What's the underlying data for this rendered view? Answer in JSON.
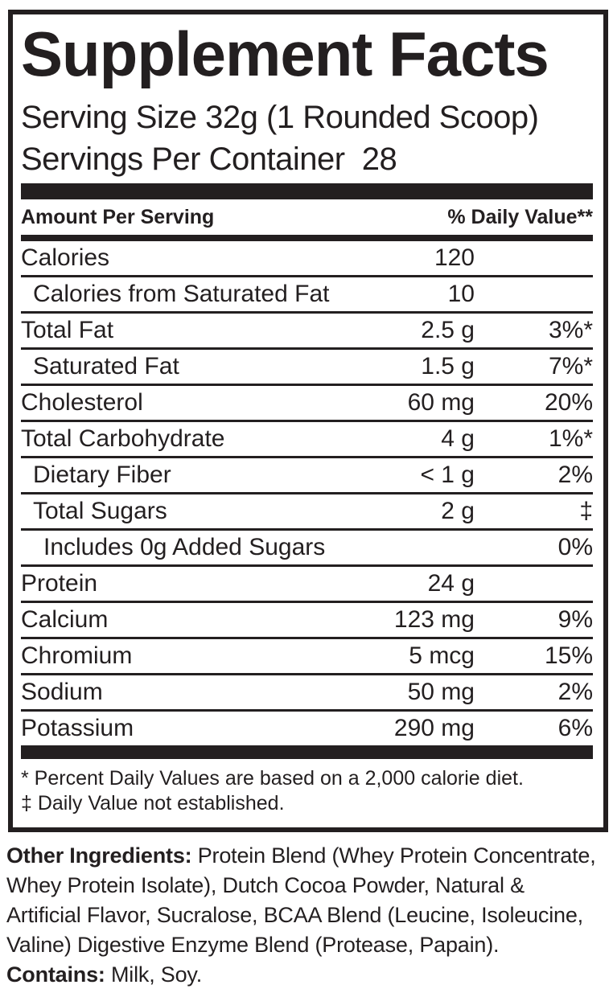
{
  "colors": {
    "ink": "#231f20",
    "background": "#ffffff"
  },
  "label": {
    "title": "Supplement Facts",
    "serving_size": "Serving Size 32g (1 Rounded Scoop)",
    "servings_per_container": "Servings Per Container  28",
    "header": {
      "amount_per_serving": "Amount Per Serving",
      "daily_value": "% Daily Value**"
    },
    "rows": [
      {
        "name": "Calories",
        "amount": "120",
        "dv": "",
        "indent": 0
      },
      {
        "name": "Calories from Saturated Fat",
        "amount": "10",
        "dv": "",
        "indent": 1
      },
      {
        "name": "Total Fat",
        "amount": "2.5 g",
        "dv": "3%*",
        "indent": 0
      },
      {
        "name": "Saturated Fat",
        "amount": "1.5 g",
        "dv": "7%*",
        "indent": 1
      },
      {
        "name": "Cholesterol",
        "amount": "60 mg",
        "dv": "20%",
        "indent": 0
      },
      {
        "name": "Total Carbohydrate",
        "amount": "4 g",
        "dv": "1%*",
        "indent": 0
      },
      {
        "name": "Dietary Fiber",
        "amount": "< 1 g",
        "dv": "2%",
        "indent": 1
      },
      {
        "name": "Total Sugars",
        "amount": "2 g",
        "dv": "‡",
        "indent": 1
      },
      {
        "name": "Includes 0g Added Sugars",
        "amount": "",
        "dv": "0%",
        "indent": 2
      },
      {
        "name": "Protein",
        "amount": "24 g",
        "dv": "",
        "indent": 0
      },
      {
        "name": "Calcium",
        "amount": "123 mg",
        "dv": "9%",
        "indent": 0
      },
      {
        "name": "Chromium",
        "amount": "5 mcg",
        "dv": "15%",
        "indent": 0
      },
      {
        "name": "Sodium",
        "amount": "50 mg",
        "dv": "2%",
        "indent": 0
      },
      {
        "name": "Potassium",
        "amount": "290 mg",
        "dv": "6%",
        "indent": 0
      }
    ],
    "footnotes": [
      "* Percent Daily Values are based on a 2,000 calorie diet.",
      "‡ Daily Value not established."
    ]
  },
  "footer": {
    "other_ingredients_label": "Other Ingredients:",
    "other_ingredients_lines": [
      " Protein Blend (Whey Protein Concentrate,",
      "Whey Protein Isolate), Dutch Cocoa Powder, Natural &",
      "Artificial Flavor, Sucralose, BCAA Blend (Leucine, Isoleucine,",
      "Valine) Digestive Enzyme Blend (Protease, Papain)."
    ],
    "contains_label": "Contains:",
    "contains_text": " Milk, Soy."
  }
}
